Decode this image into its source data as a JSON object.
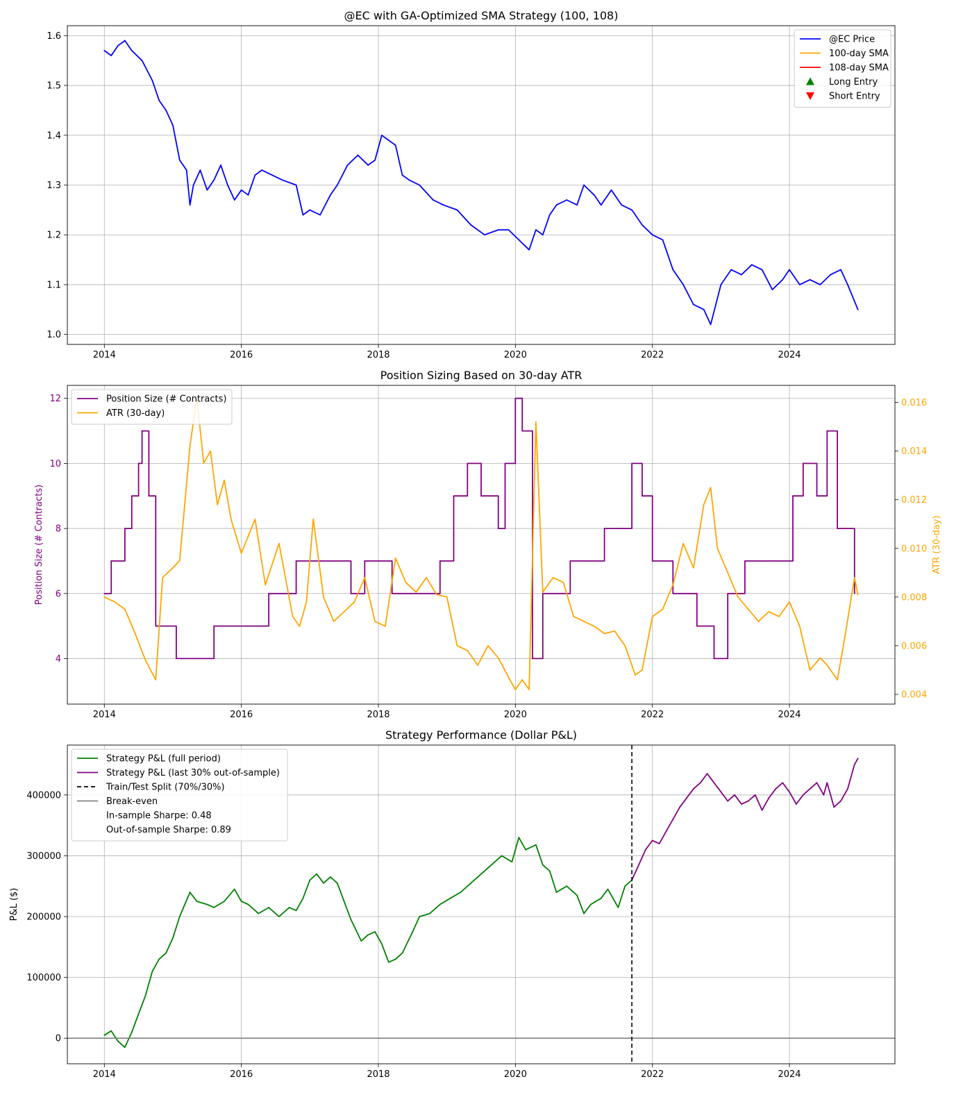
{
  "chart_data": [
    {
      "type": "line",
      "title": "@EC with GA-Optimized SMA Strategy (100, 108)",
      "xlabel": "",
      "ylabel": "",
      "xlim": [
        2013.46,
        2025.54
      ],
      "ylim": [
        0.98,
        1.62
      ],
      "xticks": [
        "2014",
        "2016",
        "2018",
        "2020",
        "2022",
        "2024"
      ],
      "xtick_values": [
        2014,
        2016,
        2018,
        2020,
        2022,
        2024
      ],
      "yticks": [
        "1.0",
        "1.1",
        "1.2",
        "1.3",
        "1.4",
        "1.5",
        "1.6"
      ],
      "ytick_values": [
        1.0,
        1.1,
        1.2,
        1.3,
        1.4,
        1.5,
        1.6
      ],
      "grid": true,
      "legend_position": "upper right",
      "legend": [
        {
          "label": "@EC Price",
          "color": "#0000ff",
          "kind": "line"
        },
        {
          "label": "100-day SMA",
          "color": "#ffa500",
          "kind": "line"
        },
        {
          "label": "108-day SMA",
          "color": "#ff0000",
          "kind": "line"
        },
        {
          "label": "Long Entry",
          "color": "#008000",
          "kind": "triangle-up"
        },
        {
          "label": "Short Entry",
          "color": "#ff0000",
          "kind": "triangle-down"
        }
      ],
      "series": [
        {
          "name": "@EC Price",
          "color": "#0000ff",
          "x": [
            2014.0,
            2014.1,
            2014.2,
            2014.3,
            2014.4,
            2014.55,
            2014.7,
            2014.8,
            2014.9,
            2015.0,
            2015.1,
            2015.2,
            2015.25,
            2015.3,
            2015.4,
            2015.5,
            2015.6,
            2015.7,
            2015.8,
            2015.9,
            2016.0,
            2016.1,
            2016.2,
            2016.3,
            2016.45,
            2016.6,
            2016.8,
            2016.9,
            2017.0,
            2017.15,
            2017.3,
            2017.4,
            2017.55,
            2017.7,
            2017.85,
            2017.95,
            2018.05,
            2018.15,
            2018.25,
            2018.35,
            2018.45,
            2018.6,
            2018.8,
            2018.95,
            2019.15,
            2019.35,
            2019.55,
            2019.75,
            2019.9,
            2020.05,
            2020.2,
            2020.3,
            2020.4,
            2020.5,
            2020.6,
            2020.75,
            2020.9,
            2021.0,
            2021.15,
            2021.25,
            2021.4,
            2021.55,
            2021.7,
            2021.85,
            2022.0,
            2022.15,
            2022.3,
            2022.45,
            2022.6,
            2022.75,
            2022.85,
            2023.0,
            2023.15,
            2023.3,
            2023.45,
            2023.6,
            2023.75,
            2023.9,
            2024.0,
            2024.15,
            2024.3,
            2024.45,
            2024.6,
            2024.75,
            2024.85,
            2025.0
          ],
          "values": [
            1.57,
            1.56,
            1.58,
            1.59,
            1.57,
            1.55,
            1.51,
            1.47,
            1.45,
            1.42,
            1.35,
            1.33,
            1.26,
            1.3,
            1.33,
            1.29,
            1.31,
            1.34,
            1.3,
            1.27,
            1.29,
            1.28,
            1.32,
            1.33,
            1.32,
            1.31,
            1.3,
            1.24,
            1.25,
            1.24,
            1.28,
            1.3,
            1.34,
            1.36,
            1.34,
            1.35,
            1.4,
            1.39,
            1.38,
            1.32,
            1.31,
            1.3,
            1.27,
            1.26,
            1.25,
            1.22,
            1.2,
            1.21,
            1.21,
            1.19,
            1.17,
            1.21,
            1.2,
            1.24,
            1.26,
            1.27,
            1.26,
            1.3,
            1.28,
            1.26,
            1.29,
            1.26,
            1.25,
            1.22,
            1.2,
            1.19,
            1.13,
            1.1,
            1.06,
            1.05,
            1.02,
            1.1,
            1.13,
            1.12,
            1.14,
            1.13,
            1.09,
            1.11,
            1.13,
            1.1,
            1.11,
            1.1,
            1.12,
            1.13,
            1.1,
            1.05
          ]
        }
      ]
    },
    {
      "type": "line",
      "title": "Position Sizing Based on 30-day ATR",
      "xlabel": "",
      "ylabel": "Position Size (# Contracts)",
      "ylabel_right": "ATR (30-day)",
      "xlim": [
        2013.46,
        2025.54
      ],
      "ylim": [
        2.6,
        12.4
      ],
      "ylim_right": [
        0.0036,
        0.0167
      ],
      "xticks": [
        "2014",
        "2016",
        "2018",
        "2020",
        "2022",
        "2024"
      ],
      "xtick_values": [
        2014,
        2016,
        2018,
        2020,
        2022,
        2024
      ],
      "yticks": [
        "4",
        "6",
        "8",
        "10",
        "12"
      ],
      "ytick_values": [
        4,
        6,
        8,
        10,
        12
      ],
      "yticks_right": [
        "0.004",
        "0.006",
        "0.008",
        "0.010",
        "0.012",
        "0.014",
        "0.016"
      ],
      "ytick_values_right": [
        0.004,
        0.006,
        0.008,
        0.01,
        0.012,
        0.014,
        0.016
      ],
      "grid": true,
      "legend_position": "upper left",
      "legend": [
        {
          "label": "Position Size (# Contracts)",
          "color": "#800080",
          "kind": "line"
        },
        {
          "label": "ATR (30-day)",
          "color": "#ffa500",
          "kind": "line"
        }
      ],
      "series": [
        {
          "name": "Position Size (# Contracts)",
          "color": "#800080",
          "axis": "left",
          "step": true,
          "x": [
            2014.0,
            2014.1,
            2014.3,
            2014.4,
            2014.5,
            2014.55,
            2014.65,
            2014.75,
            2015.05,
            2015.35,
            2015.6,
            2015.85,
            2016.4,
            2016.8,
            2017.3,
            2017.6,
            2017.8,
            2018.2,
            2018.6,
            2018.9,
            2019.1,
            2019.3,
            2019.5,
            2019.75,
            2019.85,
            2020.0,
            2020.1,
            2020.25,
            2020.4,
            2020.8,
            2021.3,
            2021.55,
            2021.7,
            2021.85,
            2022.0,
            2022.3,
            2022.65,
            2022.9,
            2023.1,
            2023.35,
            2023.65,
            2024.05,
            2024.2,
            2024.4,
            2024.55,
            2024.7,
            2024.8,
            2024.95
          ],
          "values": [
            6,
            7,
            8,
            9,
            10,
            11,
            9,
            5,
            4,
            4,
            5,
            5,
            6,
            7,
            7,
            6,
            7,
            6,
            6,
            7,
            9,
            10,
            9,
            8,
            10,
            12,
            11,
            4,
            6,
            7,
            8,
            8,
            10,
            9,
            7,
            6,
            5,
            4,
            6,
            7,
            7,
            9,
            10,
            9,
            11,
            8,
            8,
            6
          ]
        },
        {
          "name": "ATR (30-day)",
          "color": "#ffa500",
          "axis": "right",
          "x": [
            2014.0,
            2014.15,
            2014.3,
            2014.45,
            2014.6,
            2014.75,
            2014.85,
            2015.0,
            2015.1,
            2015.25,
            2015.35,
            2015.45,
            2015.55,
            2015.65,
            2015.75,
            2015.85,
            2016.0,
            2016.1,
            2016.2,
            2016.35,
            2016.55,
            2016.75,
            2016.85,
            2016.95,
            2017.05,
            2017.2,
            2017.35,
            2017.5,
            2017.65,
            2017.8,
            2017.95,
            2018.1,
            2018.25,
            2018.4,
            2018.55,
            2018.7,
            2018.85,
            2019.0,
            2019.15,
            2019.3,
            2019.45,
            2019.6,
            2019.75,
            2019.9,
            2020.0,
            2020.1,
            2020.2,
            2020.3,
            2020.4,
            2020.55,
            2020.7,
            2020.85,
            2021.0,
            2021.15,
            2021.3,
            2021.45,
            2021.6,
            2021.75,
            2021.85,
            2022.0,
            2022.15,
            2022.3,
            2022.45,
            2022.6,
            2022.75,
            2022.85,
            2022.95,
            2023.1,
            2023.25,
            2023.4,
            2023.55,
            2023.7,
            2023.85,
            2024.0,
            2024.15,
            2024.3,
            2024.45,
            2024.55,
            2024.7,
            2024.8,
            2024.95,
            2025.0
          ],
          "values": [
            0.008,
            0.0078,
            0.0075,
            0.0065,
            0.0054,
            0.0046,
            0.0088,
            0.0092,
            0.0095,
            0.0142,
            0.0162,
            0.0135,
            0.014,
            0.0118,
            0.0128,
            0.0112,
            0.0098,
            0.0105,
            0.0112,
            0.0085,
            0.0102,
            0.0072,
            0.0068,
            0.0078,
            0.0112,
            0.008,
            0.007,
            0.0074,
            0.0078,
            0.0088,
            0.007,
            0.0068,
            0.0096,
            0.0086,
            0.0082,
            0.0088,
            0.0081,
            0.008,
            0.006,
            0.0058,
            0.0052,
            0.006,
            0.0055,
            0.0047,
            0.0042,
            0.0046,
            0.0042,
            0.0152,
            0.0082,
            0.0088,
            0.0086,
            0.0072,
            0.007,
            0.0068,
            0.0065,
            0.0066,
            0.006,
            0.0048,
            0.005,
            0.0072,
            0.0075,
            0.0085,
            0.0102,
            0.0092,
            0.0118,
            0.0125,
            0.01,
            0.009,
            0.008,
            0.0075,
            0.007,
            0.0074,
            0.0072,
            0.0078,
            0.0068,
            0.005,
            0.0055,
            0.0052,
            0.0046,
            0.0062,
            0.0088,
            0.0081
          ]
        }
      ]
    },
    {
      "type": "line",
      "title": "Strategy Performance (Dollar P&L)",
      "xlabel": "",
      "ylabel": "P&L ($)",
      "xlim": [
        2013.46,
        2025.54
      ],
      "ylim": [
        -42000,
        482000
      ],
      "xticks": [
        "2014",
        "2016",
        "2018",
        "2020",
        "2022",
        "2024"
      ],
      "xtick_values": [
        2014,
        2016,
        2018,
        2020,
        2022,
        2024
      ],
      "yticks": [
        "0",
        "100000",
        "200000",
        "300000",
        "400000"
      ],
      "ytick_values": [
        0,
        100000,
        200000,
        300000,
        400000
      ],
      "grid": true,
      "legend_position": "upper left",
      "legend": [
        {
          "label": "Strategy P&L (full period)",
          "color": "#008000",
          "kind": "line"
        },
        {
          "label": "Strategy P&L (last 30% out-of-sample)",
          "color": "#800080",
          "kind": "line"
        },
        {
          "label": "Train/Test Split (70%/30%)",
          "color": "#000000",
          "kind": "dashed"
        },
        {
          "label": "Break-even",
          "color": "#808080",
          "kind": "line"
        },
        {
          "label": "In-sample Sharpe: 0.48",
          "color": "",
          "kind": "none"
        },
        {
          "label": "Out-of-sample Sharpe: 0.89",
          "color": "",
          "kind": "none"
        }
      ],
      "split_x": 2021.7,
      "baseline_y": 0,
      "series": [
        {
          "name": "Strategy P&L (full period)",
          "color": "#008000",
          "x": [
            2014.0,
            2014.1,
            2014.2,
            2014.3,
            2014.4,
            2014.5,
            2014.6,
            2014.7,
            2014.8,
            2014.9,
            2015.0,
            2015.1,
            2015.25,
            2015.35,
            2015.5,
            2015.6,
            2015.75,
            2015.9,
            2016.0,
            2016.1,
            2016.25,
            2016.4,
            2016.55,
            2016.7,
            2016.8,
            2016.9,
            2017.0,
            2017.1,
            2017.2,
            2017.3,
            2017.4,
            2017.5,
            2017.6,
            2017.75,
            2017.85,
            2017.95,
            2018.05,
            2018.15,
            2018.25,
            2018.35,
            2018.5,
            2018.6,
            2018.75,
            2018.9,
            2019.05,
            2019.2,
            2019.35,
            2019.5,
            2019.65,
            2019.8,
            2019.95,
            2020.05,
            2020.15,
            2020.3,
            2020.4,
            2020.5,
            2020.6,
            2020.75,
            2020.9,
            2021.0,
            2021.1,
            2021.25,
            2021.35,
            2021.5,
            2021.6,
            2021.7
          ],
          "values": [
            5000,
            12000,
            -5000,
            -15000,
            10000,
            40000,
            70000,
            110000,
            130000,
            140000,
            165000,
            200000,
            240000,
            225000,
            220000,
            215000,
            225000,
            245000,
            225000,
            220000,
            205000,
            215000,
            200000,
            215000,
            210000,
            230000,
            260000,
            270000,
            255000,
            265000,
            255000,
            225000,
            195000,
            160000,
            170000,
            175000,
            155000,
            125000,
            130000,
            140000,
            175000,
            200000,
            205000,
            220000,
            230000,
            240000,
            255000,
            270000,
            285000,
            300000,
            290000,
            330000,
            310000,
            318000,
            285000,
            275000,
            240000,
            250000,
            235000,
            205000,
            220000,
            230000,
            245000,
            215000,
            250000,
            260000
          ]
        },
        {
          "name": "Strategy P&L (last 30% out-of-sample)",
          "color": "#800080",
          "x": [
            2021.7,
            2021.8,
            2021.9,
            2022.0,
            2022.1,
            2022.2,
            2022.3,
            2022.4,
            2022.5,
            2022.6,
            2022.7,
            2022.8,
            2022.9,
            2023.0,
            2023.1,
            2023.2,
            2023.3,
            2023.4,
            2023.5,
            2023.6,
            2023.7,
            2023.8,
            2023.9,
            2024.0,
            2024.1,
            2024.2,
            2024.3,
            2024.4,
            2024.5,
            2024.55,
            2024.65,
            2024.75,
            2024.85,
            2024.95,
            2025.0
          ],
          "values": [
            260000,
            285000,
            310000,
            325000,
            320000,
            340000,
            360000,
            380000,
            395000,
            410000,
            420000,
            435000,
            420000,
            405000,
            390000,
            400000,
            385000,
            390000,
            400000,
            375000,
            395000,
            410000,
            420000,
            405000,
            385000,
            400000,
            410000,
            420000,
            400000,
            420000,
            380000,
            390000,
            410000,
            450000,
            460000
          ]
        }
      ]
    }
  ]
}
